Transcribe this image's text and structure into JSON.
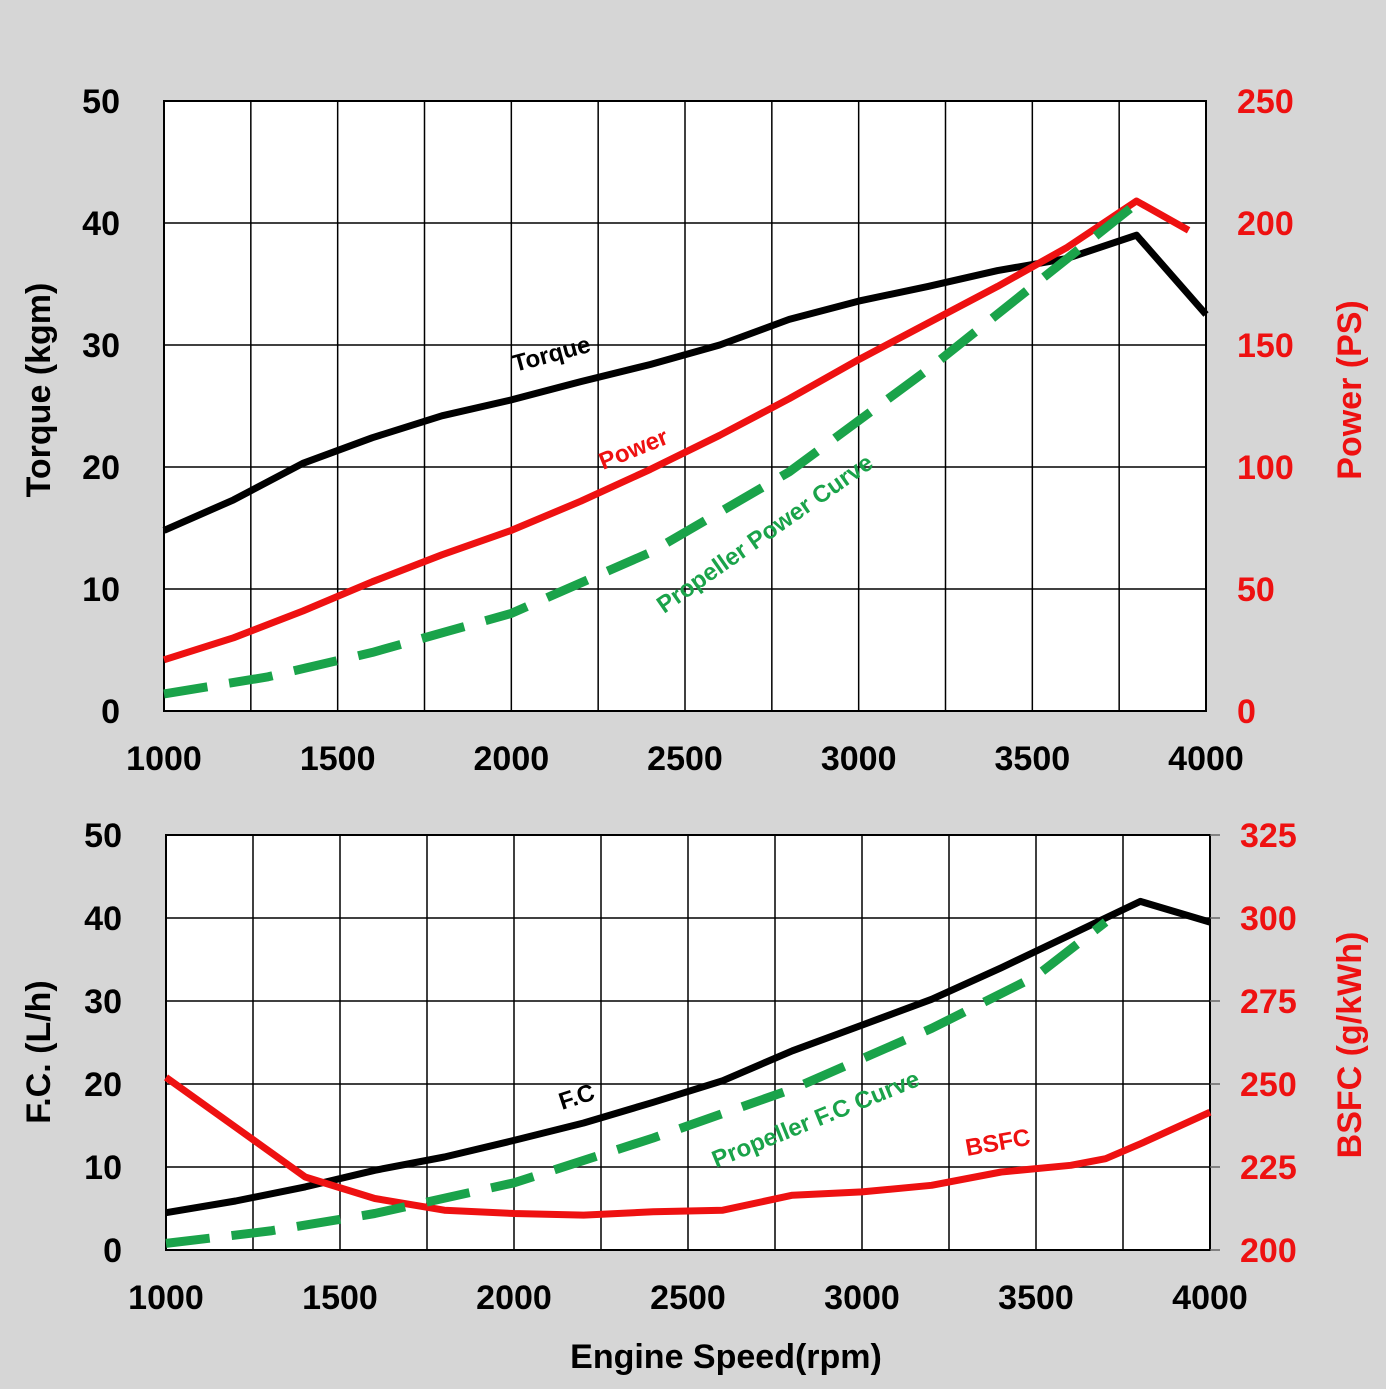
{
  "chart_data": [
    {
      "type": "line",
      "id": "top",
      "xlabel": "",
      "ylabel": "Torque (kgm)",
      "y2label": "Power (PS)",
      "xlim": [
        1000,
        4000
      ],
      "ylim": [
        0,
        50
      ],
      "y2lim": [
        0,
        250
      ],
      "x_ticks": [
        1000,
        1500,
        2000,
        2500,
        3000,
        3500,
        4000
      ],
      "y_ticks": [
        0,
        10,
        20,
        30,
        40,
        50
      ],
      "y2_ticks": [
        0,
        50,
        100,
        150,
        200,
        250
      ],
      "grid": true,
      "series": [
        {
          "name": "Torque",
          "axis": "left",
          "color": "#000000",
          "dashed": false,
          "x": [
            1000,
            1200,
            1400,
            1600,
            1800,
            2000,
            2200,
            2400,
            2600,
            2800,
            3000,
            3200,
            3400,
            3600,
            3800,
            4000
          ],
          "y": [
            14.8,
            17.3,
            20.3,
            22.4,
            24.2,
            25.5,
            27.0,
            28.4,
            30.0,
            32.1,
            33.6,
            34.8,
            36.1,
            37.1,
            39.0,
            32.5
          ]
        },
        {
          "name": "Power",
          "axis": "right",
          "color": "#ee1111",
          "dashed": false,
          "x": [
            1000,
            1200,
            1400,
            1600,
            1800,
            2000,
            2200,
            2400,
            2600,
            2800,
            3000,
            3200,
            3400,
            3600,
            3800,
            3950
          ],
          "y": [
            21,
            30,
            41,
            53,
            64,
            74,
            86,
            99,
            113,
            128,
            144,
            159,
            174,
            190,
            209,
            197
          ]
        },
        {
          "name": "Propeller Power Curve",
          "axis": "right",
          "color": "#1aa34a",
          "dashed": true,
          "x": [
            1000,
            1300,
            1600,
            2000,
            2400,
            2800,
            3200,
            3500,
            3800
          ],
          "y": [
            7,
            14,
            24,
            40,
            65,
            98,
            140,
            174,
            208
          ]
        }
      ],
      "annotations": [
        "Torque",
        "Power",
        "Propeller Power Curve"
      ]
    },
    {
      "type": "line",
      "id": "bottom",
      "xlabel": "Engine Speed(rpm)",
      "ylabel": "F.C. (L/h)",
      "y2label": "BSFC (g/kWh)",
      "xlim": [
        1000,
        4000
      ],
      "ylim": [
        0,
        50
      ],
      "y2lim": [
        200,
        325
      ],
      "x_ticks": [
        1000,
        1500,
        2000,
        2500,
        3000,
        3500,
        4000
      ],
      "y_ticks": [
        0,
        10,
        20,
        30,
        40,
        50
      ],
      "y2_ticks": [
        200,
        225,
        250,
        275,
        300,
        325
      ],
      "grid": true,
      "series": [
        {
          "name": "F.C",
          "axis": "left",
          "color": "#000000",
          "dashed": false,
          "x": [
            1000,
            1200,
            1400,
            1600,
            1800,
            2000,
            2200,
            2400,
            2600,
            2800,
            3000,
            3200,
            3400,
            3600,
            3800,
            4000
          ],
          "y": [
            4.5,
            5.9,
            7.6,
            9.6,
            11.2,
            13.2,
            15.3,
            17.8,
            20.4,
            24.0,
            27.1,
            30.2,
            34.0,
            38.0,
            42.0,
            39.5
          ]
        },
        {
          "name": "BSFC",
          "axis": "right",
          "color": "#ee1111",
          "dashed": false,
          "x": [
            1000,
            1200,
            1400,
            1600,
            1800,
            2000,
            2200,
            2400,
            2600,
            2800,
            3000,
            3200,
            3400,
            3600,
            3700,
            3800,
            4000
          ],
          "y": [
            252,
            237,
            222,
            215.5,
            212,
            211,
            210.5,
            211.5,
            212,
            216.5,
            217.5,
            219.5,
            223.5,
            225.5,
            227.5,
            232,
            241.5
          ]
        },
        {
          "name": "Propeller F.C Curve",
          "axis": "left",
          "color": "#1aa34a",
          "dashed": true,
          "x": [
            1000,
            1300,
            1600,
            2000,
            2400,
            2800,
            3200,
            3500,
            3700
          ],
          "y": [
            0.8,
            2.3,
            4.4,
            8.1,
            13.5,
            19.4,
            26.7,
            33.0,
            39.5
          ]
        }
      ],
      "annotations": [
        "F.C",
        "BSFC",
        "Propeller F.C Curve"
      ]
    }
  ],
  "colors": {
    "left_axis": "#000000",
    "right_axis": "#ee1111",
    "propeller": "#1aa34a",
    "frame_background": "#d6d6d6"
  }
}
